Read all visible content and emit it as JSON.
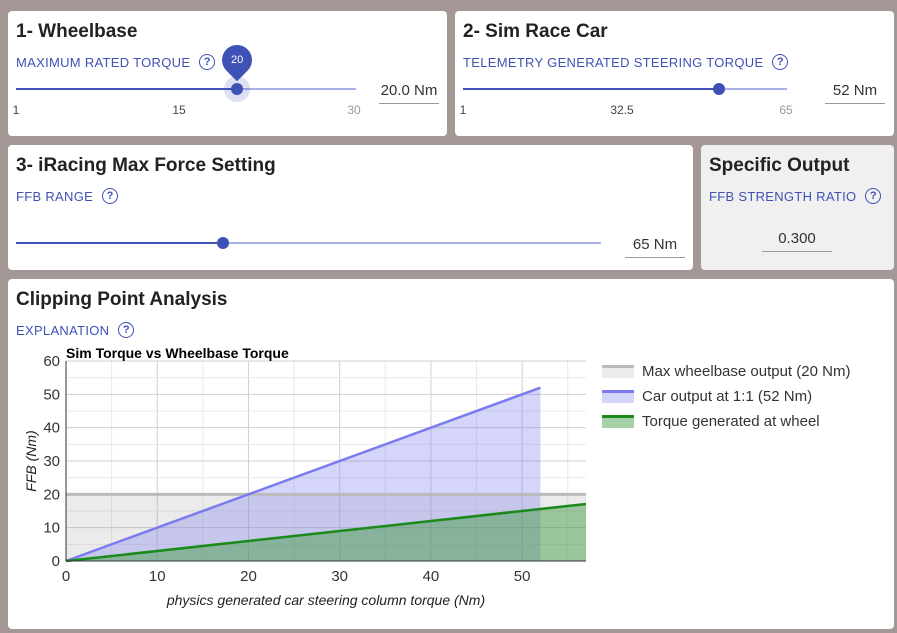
{
  "wheelbase": {
    "title": "1- Wheelbase",
    "subtitle": "MAXIMUM RATED TORQUE",
    "help": "?",
    "slider_value": 20,
    "slider_min": 1,
    "slider_max": 30,
    "bubble": "20",
    "mark_min": "1",
    "mark_mid": "15",
    "mark_max": "30",
    "value": "20.0 Nm"
  },
  "simcar": {
    "title": "2- Sim Race Car",
    "subtitle": "TELEMETRY GENERATED STEERING TORQUE",
    "help": "?",
    "slider_value": 52,
    "slider_min": 1,
    "slider_max": 65,
    "mark_min": "1",
    "mark_mid": "32.5",
    "mark_max": "65",
    "value": "52 Nm"
  },
  "iracing": {
    "title": "3- iRacing Max Force Setting",
    "subtitle": "FFB RANGE",
    "help": "?",
    "slider_fraction": 0.35,
    "value": "65 Nm"
  },
  "output": {
    "title": "Specific Output",
    "subtitle": "FFB STRENGTH RATIO",
    "help": "?",
    "value": "0.300"
  },
  "clipping": {
    "title": "Clipping Point Analysis",
    "subtitle": "EXPLANATION",
    "help": "?"
  },
  "chart_data": {
    "type": "line",
    "title": "Sim Torque vs Wheelbase Torque",
    "xlabel": "physics generated car steering column torque (Nm)",
    "ylabel": "FFB (Nm)",
    "xlim": [
      0,
      57
    ],
    "ylim": [
      0,
      60
    ],
    "xticks": [
      0,
      10,
      20,
      30,
      40,
      50
    ],
    "yticks": [
      0,
      10,
      20,
      30,
      40,
      50,
      60
    ],
    "grid": true,
    "legend_position": "right",
    "series": [
      {
        "name": "Max wheelbase output (20 Nm)",
        "color": "#bbbbbb",
        "x": [
          0,
          57
        ],
        "y": [
          20,
          20
        ]
      },
      {
        "name": "Car output at 1:1 (52 Nm)",
        "color": "#7b7bf0",
        "x": [
          0,
          52
        ],
        "y": [
          0,
          52
        ]
      },
      {
        "name": "Torque generated at wheel",
        "color": "#1a8a1a",
        "x": [
          0,
          57
        ],
        "y": [
          0,
          17.1
        ]
      }
    ]
  }
}
